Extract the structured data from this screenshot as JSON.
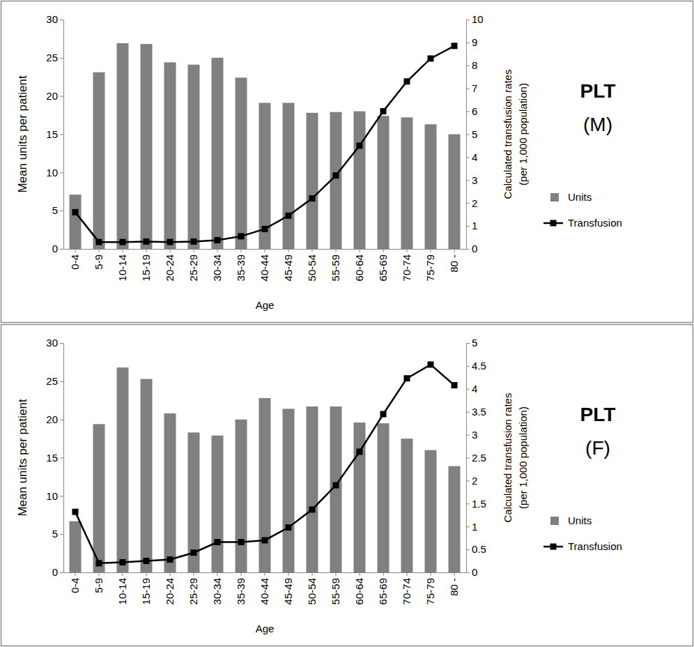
{
  "chart_data": [
    {
      "type": "bar",
      "title": "PLT",
      "subtitle": "(M)",
      "x_label": "Age",
      "y_label": "Mean units per patient",
      "y2_label": [
        "Calculated transfusion rates",
        "(per 1,000 population)"
      ],
      "categories": [
        "0-4",
        "5-9",
        "10-14",
        "15-19",
        "20-24",
        "25-29",
        "30-34",
        "35-39",
        "40-44",
        "45-49",
        "50-54",
        "55-59",
        "60-64",
        "65-69",
        "70-74",
        "75-79",
        "80 -"
      ],
      "series": [
        {
          "name": "Units",
          "type": "bar",
          "color": "#808080",
          "values": [
            7.1,
            23.1,
            26.9,
            26.8,
            24.4,
            24.1,
            25.0,
            22.4,
            19.1,
            19.1,
            17.8,
            17.9,
            18.0,
            17.4,
            17.2,
            16.3,
            15.0
          ]
        },
        {
          "name": "Transfusion",
          "type": "line",
          "color": "#000000",
          "marker": "square",
          "axis": "y2",
          "values": [
            1.6,
            0.3,
            0.3,
            0.32,
            0.3,
            0.32,
            0.38,
            0.55,
            0.87,
            1.45,
            2.2,
            3.2,
            4.5,
            6.0,
            7.3,
            8.3,
            8.85
          ]
        }
      ],
      "ylim": [
        0,
        30
      ],
      "yticks": [
        0,
        5,
        10,
        15,
        20,
        25,
        30
      ],
      "y2lim": [
        0,
        10
      ],
      "y2ticks": [
        0,
        1,
        2,
        3,
        4,
        5,
        6,
        7,
        8,
        9,
        10
      ],
      "grid": false,
      "legend": "right"
    },
    {
      "type": "bar",
      "title": "PLT",
      "subtitle": "(F)",
      "x_label": "Age",
      "y_label": "Mean units per patient",
      "y2_label": [
        "Calculated transfusion rates",
        "(per 1,000 population)"
      ],
      "categories": [
        "0-4",
        "5-9",
        "10-14",
        "15-19",
        "20-24",
        "25-29",
        "30-34",
        "35-39",
        "40-44",
        "45-49",
        "50-54",
        "55-59",
        "60-64",
        "65-69",
        "70-74",
        "75-79",
        "80 -"
      ],
      "series": [
        {
          "name": "Units",
          "type": "bar",
          "color": "#808080",
          "values": [
            6.7,
            19.4,
            26.8,
            25.3,
            20.8,
            18.3,
            17.9,
            20.0,
            22.8,
            21.4,
            21.7,
            21.7,
            19.6,
            19.5,
            17.5,
            16.0,
            13.9
          ]
        },
        {
          "name": "Transfusion",
          "type": "line",
          "color": "#000000",
          "marker": "square",
          "axis": "y2",
          "values": [
            1.32,
            0.2,
            0.22,
            0.25,
            0.28,
            0.43,
            0.66,
            0.66,
            0.7,
            0.98,
            1.37,
            1.9,
            2.63,
            3.45,
            4.23,
            4.53,
            4.08
          ]
        }
      ],
      "ylim": [
        0,
        30
      ],
      "yticks": [
        0,
        5,
        10,
        15,
        20,
        25,
        30
      ],
      "y2lim": [
        0,
        5
      ],
      "y2ticks": [
        0,
        0.5,
        1,
        1.5,
        2,
        2.5,
        3,
        3.5,
        4,
        4.5,
        5
      ],
      "grid": false,
      "legend": "right"
    }
  ]
}
